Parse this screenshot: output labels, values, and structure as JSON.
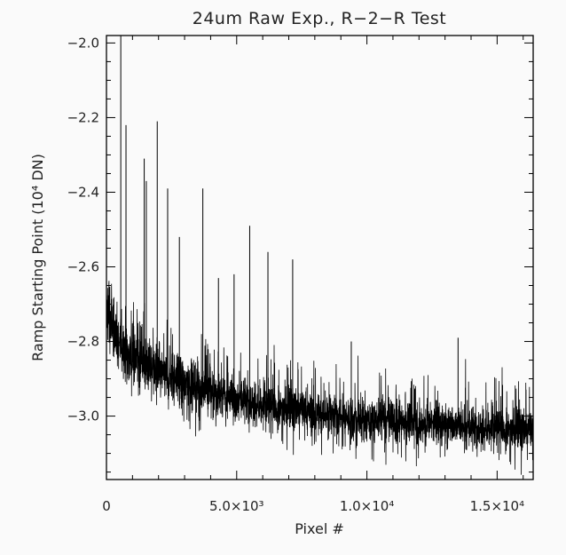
{
  "chart_data": {
    "type": "line",
    "title": "24um Raw Exp., R−2−R Test",
    "xlabel": "Pixel #",
    "ylabel": "Ramp Starting Point (10⁴ DN)",
    "xlim": [
      0,
      16384
    ],
    "ylim": [
      -3.17,
      -1.98
    ],
    "x_ticks": [
      0,
      5000,
      10000,
      15000
    ],
    "x_tick_labels": [
      "0",
      "5.0×10³",
      "1.0×10⁴",
      "1.5×10⁴"
    ],
    "y_ticks": [
      -2.0,
      -2.2,
      -2.4,
      -2.6,
      -2.8,
      -3.0
    ],
    "y_tick_labels": [
      "−2.0",
      "−2.2",
      "−2.4",
      "−2.6",
      "−2.8",
      "−3.0"
    ],
    "grid": false,
    "series": [
      {
        "color": "#000000",
        "trend": {
          "x": [
            0,
            500,
            1000,
            2000,
            3000,
            4000,
            5000,
            6000,
            7000,
            8000,
            9000,
            10000,
            11000,
            12000,
            13000,
            14000,
            15000,
            16384
          ],
          "y": [
            -2.72,
            -2.8,
            -2.84,
            -2.88,
            -2.91,
            -2.93,
            -2.95,
            -2.97,
            -2.98,
            -2.99,
            -3.0,
            -3.01,
            -3.01,
            -3.02,
            -3.02,
            -3.03,
            -3.03,
            -3.04
          ]
        },
        "spikes": {
          "x": [
            550,
            750,
            1450,
            1530,
            1950,
            2350,
            2800,
            3700,
            4300,
            4900,
            5500,
            6200,
            7150,
            9400,
            13500
          ],
          "y": [
            -1.98,
            -2.22,
            -2.31,
            -2.37,
            -2.21,
            -2.39,
            -2.52,
            -2.39,
            -2.63,
            -2.62,
            -2.49,
            -2.56,
            -2.58,
            -2.8,
            -2.79
          ]
        }
      }
    ]
  }
}
